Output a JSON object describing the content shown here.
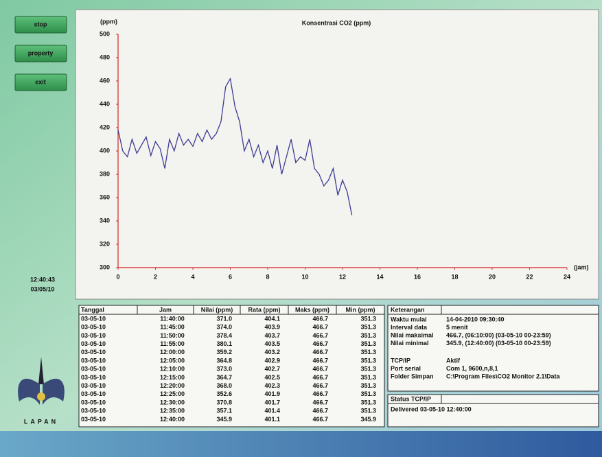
{
  "buttons": [
    "stop",
    "property",
    "exit"
  ],
  "clock": {
    "time": "12:40:43",
    "date": "03/05/10"
  },
  "logo_text": "LAPAN",
  "chart_data": {
    "type": "line",
    "title": "Konsentrasi CO2 (ppm)",
    "y_label": "(ppm)",
    "x_label": "(jam)",
    "color": "#3b3b95",
    "x": [
      0,
      0.25,
      0.5,
      0.75,
      1,
      1.25,
      1.5,
      1.75,
      2,
      2.25,
      2.5,
      2.75,
      3,
      3.25,
      3.5,
      3.75,
      4,
      4.25,
      4.5,
      4.75,
      5,
      5.25,
      5.5,
      5.75,
      6,
      6.25,
      6.5,
      6.75,
      7,
      7.25,
      7.5,
      7.75,
      8,
      8.25,
      8.5,
      8.75,
      9,
      9.25,
      9.5,
      9.75,
      10,
      10.25,
      10.5,
      10.75,
      11,
      11.25,
      11.5,
      11.75,
      12,
      12.25,
      12.5
    ],
    "values": [
      418,
      400,
      395,
      410,
      398,
      405,
      412,
      396,
      408,
      402,
      385,
      410,
      400,
      415,
      405,
      410,
      404,
      415,
      408,
      418,
      410,
      415,
      425,
      455,
      462,
      438,
      425,
      400,
      410,
      395,
      405,
      390,
      400,
      385,
      405,
      380,
      395,
      410,
      390,
      395,
      392,
      410,
      385,
      380,
      370,
      375,
      385,
      362,
      375,
      365,
      345
    ],
    "xlim": [
      0,
      24
    ],
    "ylim": [
      300,
      500
    ],
    "xticks": [
      0,
      2,
      4,
      6,
      8,
      10,
      12,
      14,
      16,
      18,
      20,
      22,
      24
    ],
    "yticks": [
      300,
      320,
      340,
      360,
      380,
      400,
      420,
      440,
      460,
      480,
      500
    ]
  },
  "table": {
    "columns": [
      "Tanggal",
      "Jam",
      "Nilai (ppm)",
      "Rata (ppm)",
      "Maks (ppm)",
      "Min (ppm)"
    ],
    "rows": [
      [
        "03-05-10",
        "11:40:00",
        "371.0",
        "404.1",
        "466.7",
        "351.3"
      ],
      [
        "03-05-10",
        "11:45:00",
        "374.0",
        "403.9",
        "466.7",
        "351.3"
      ],
      [
        "03-05-10",
        "11:50:00",
        "378.4",
        "403.7",
        "466.7",
        "351.3"
      ],
      [
        "03-05-10",
        "11:55:00",
        "380.1",
        "403.5",
        "466.7",
        "351.3"
      ],
      [
        "03-05-10",
        "12:00:00",
        "359.2",
        "403.2",
        "466.7",
        "351.3"
      ],
      [
        "03-05-10",
        "12:05:00",
        "364.8",
        "402.9",
        "466.7",
        "351.3"
      ],
      [
        "03-05-10",
        "12:10:00",
        "373.0",
        "402.7",
        "466.7",
        "351.3"
      ],
      [
        "03-05-10",
        "12:15:00",
        "364.7",
        "402.5",
        "466.7",
        "351.3"
      ],
      [
        "03-05-10",
        "12:20:00",
        "368.0",
        "402.3",
        "466.7",
        "351.3"
      ],
      [
        "03-05-10",
        "12:25:00",
        "352.6",
        "401.9",
        "466.7",
        "351.3"
      ],
      [
        "03-05-10",
        "12:30:00",
        "370.8",
        "401.7",
        "466.7",
        "351.3"
      ],
      [
        "03-05-10",
        "12:35:00",
        "357.1",
        "401.4",
        "466.7",
        "351.3"
      ],
      [
        "03-05-10",
        "12:40:00",
        "345.9",
        "401.1",
        "466.7",
        "345.9"
      ]
    ]
  },
  "info": {
    "title": "Keterangan",
    "rows": [
      [
        "Waktu mulai",
        "14-04-2010 09:30:40"
      ],
      [
        "Interval data",
        "5 menit"
      ],
      [
        "Nilai maksimal",
        "466.7, (06:10:00) (03-05-10 00-23:59)"
      ],
      [
        "Nilai minimal",
        "345.9, (12:40:00) (03-05-10 00-23:59)"
      ],
      [
        "TCP/IP",
        "Aktif"
      ],
      [
        "Port serial",
        "Com 1,  9600,n,8,1"
      ],
      [
        "Folder Simpan",
        "C:\\Program Files\\CO2 Monitor 2.1\\Data"
      ]
    ]
  },
  "status": {
    "title": "Status TCP/IP",
    "text": "Delivered 03-05-10 12:40:00"
  }
}
